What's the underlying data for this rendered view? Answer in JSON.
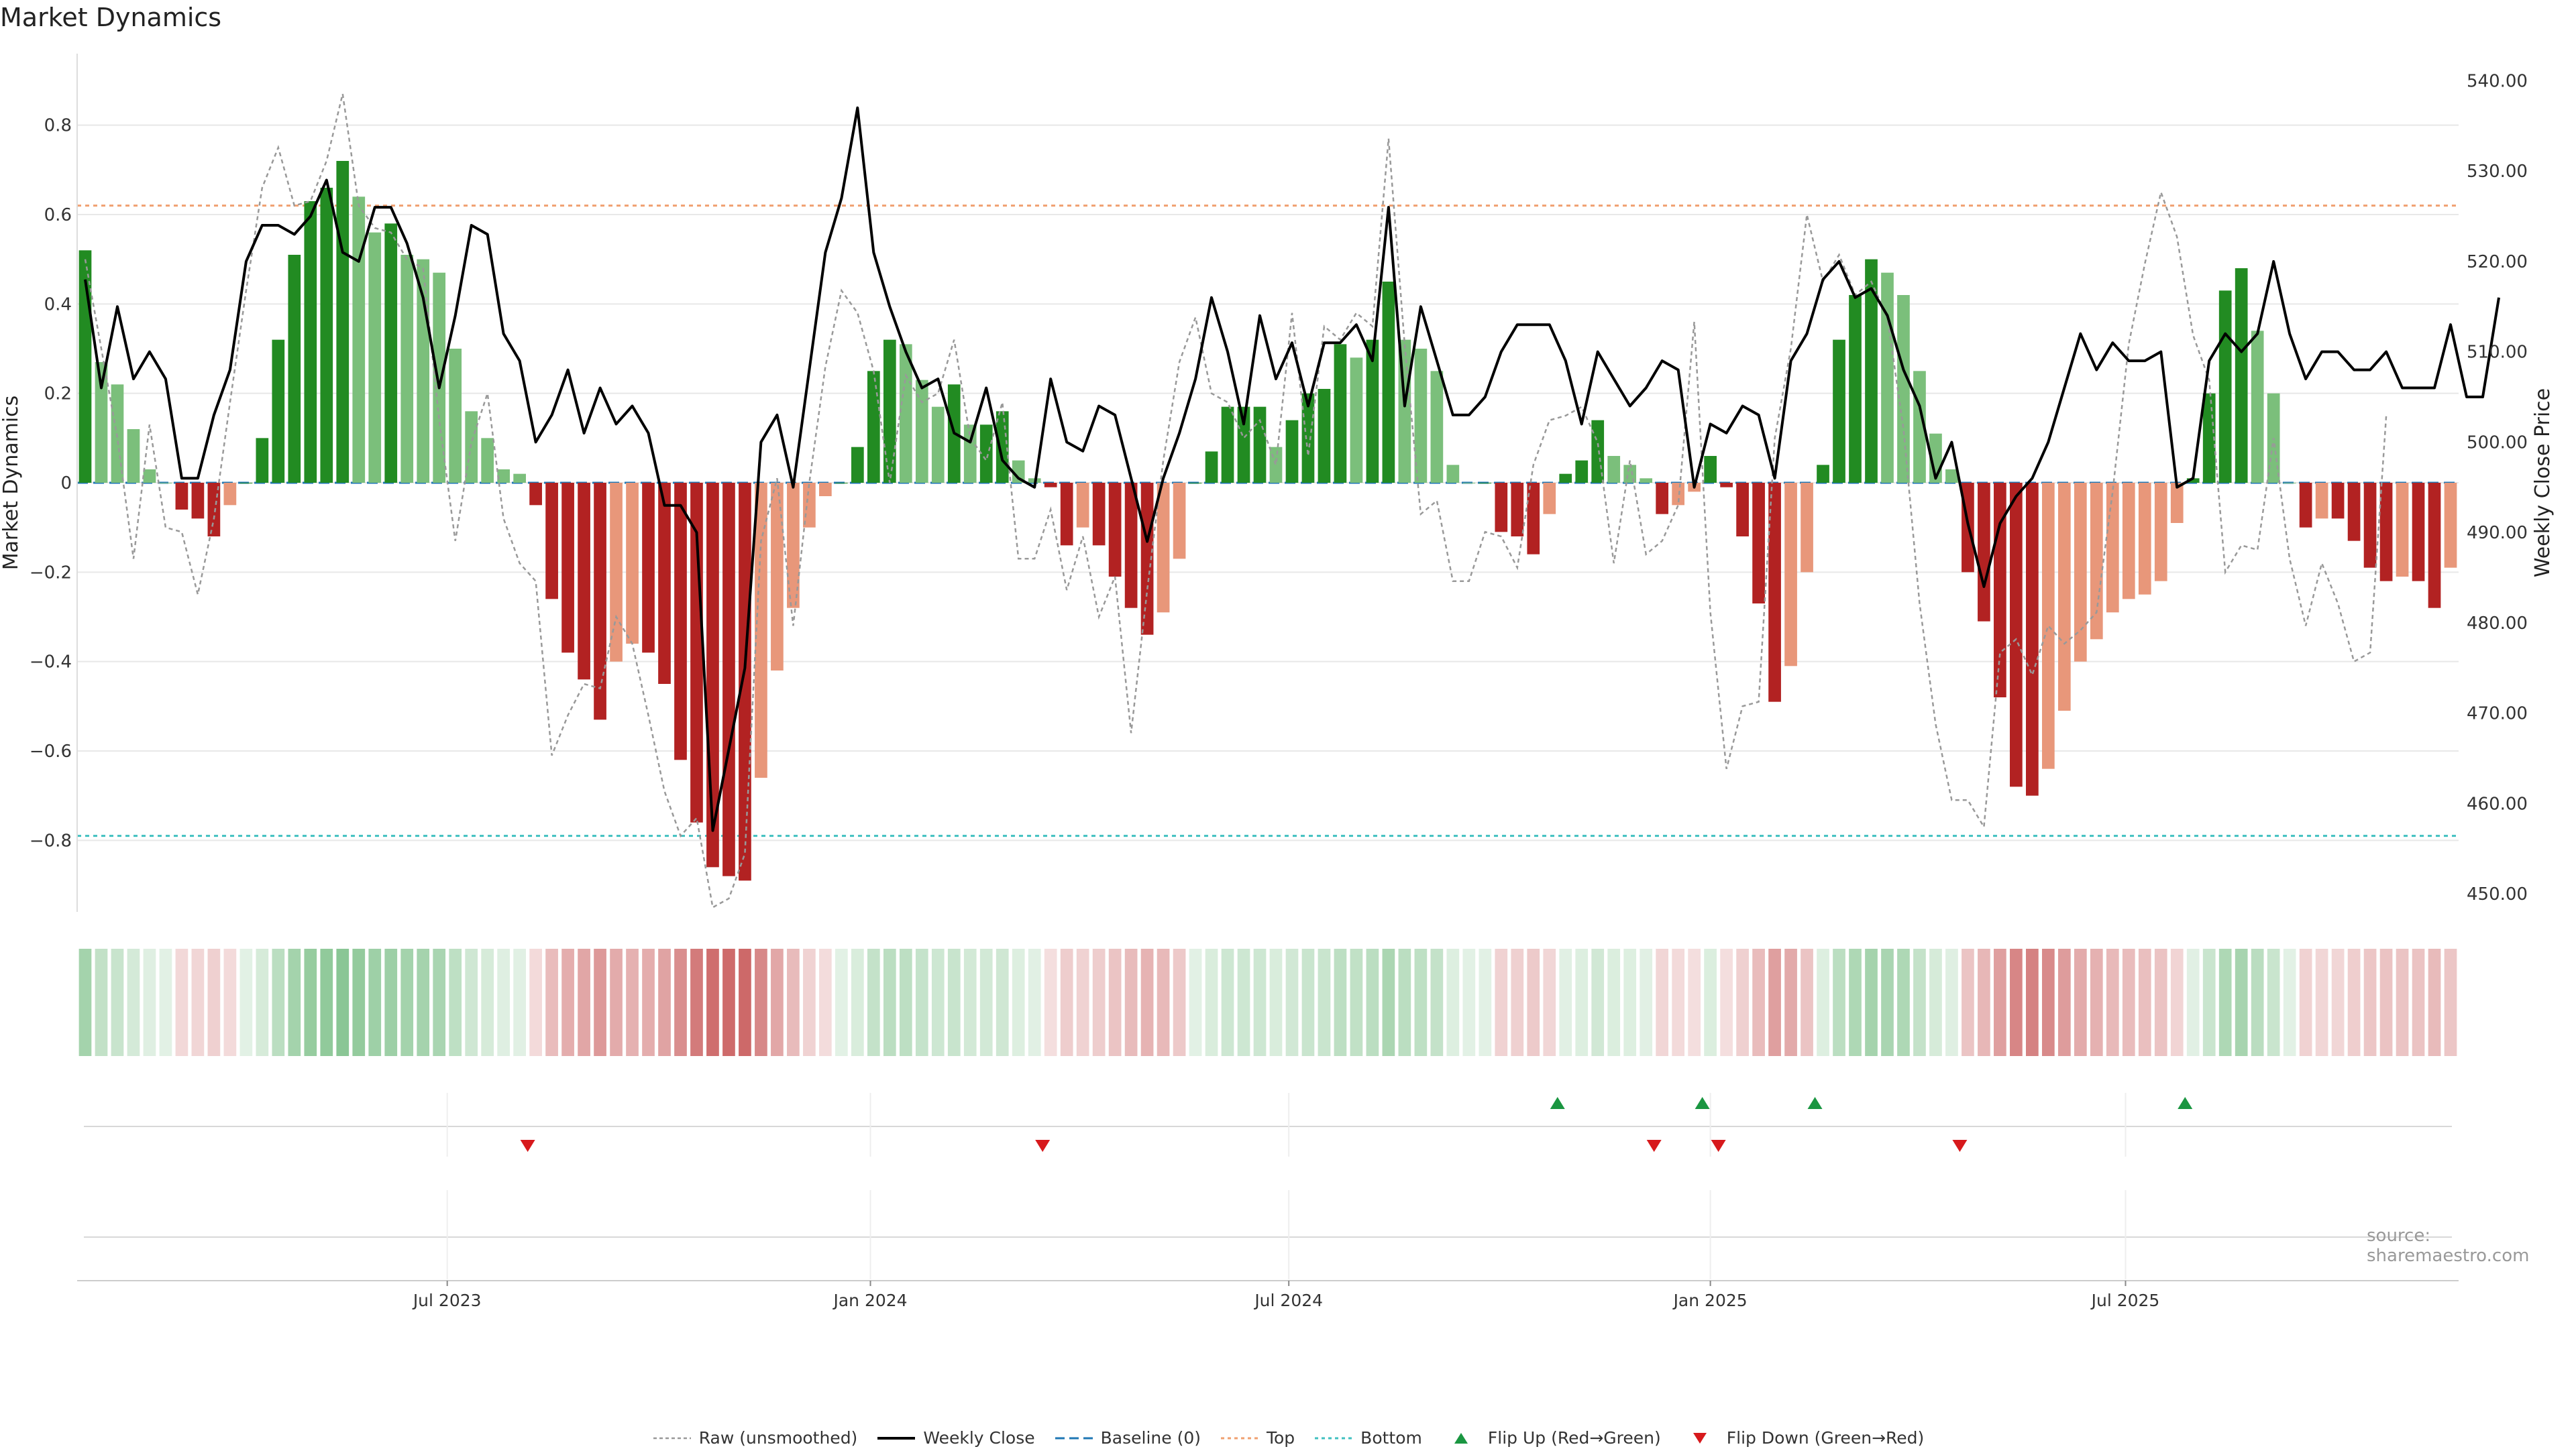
{
  "title": "Market Dynamics",
  "source_note": "source: sharemaestro.com",
  "legend": [
    {
      "label": "Raw (unsmoothed)",
      "key": "raw"
    },
    {
      "label": "Weekly Close",
      "key": "close"
    },
    {
      "label": "Baseline (0)",
      "key": "baseline"
    },
    {
      "label": "Top",
      "key": "top"
    },
    {
      "label": "Bottom",
      "key": "bottom"
    },
    {
      "label": "Flip Up (Red→Green)",
      "key": "flip_up"
    },
    {
      "label": "Flip Down (Green→Red)",
      "key": "flip_down"
    }
  ],
  "colors": {
    "green_strong": "#228b22",
    "green_light": "#7bbf7b",
    "red_strong": "#b22222",
    "red_light": "#e8977a",
    "close_line": "#000000",
    "raw_line": "#999999",
    "baseline": "#1f77b4",
    "top": "#f0a070",
    "bottom": "#40c0c0",
    "flip_up": "#1a9641",
    "flip_down": "#d7191c"
  },
  "chart_data": {
    "type": "bar",
    "title": "Market Dynamics",
    "ylabel": "Market Dynamics",
    "y2label": "Weekly Close Price",
    "ylim": [
      -0.96,
      0.96
    ],
    "y2lim": [
      448,
      543
    ],
    "yticks": [
      -0.8,
      -0.6,
      -0.4,
      -0.2,
      0,
      0.2,
      0.4,
      0.6,
      0.8
    ],
    "ytick_labels": [
      "−0.8",
      "−0.6",
      "−0.4",
      "−0.2",
      "0",
      "0.2",
      "0.4",
      "0.6",
      "0.8"
    ],
    "y2ticks": [
      450,
      460,
      470,
      480,
      490,
      500,
      510,
      520,
      530,
      540
    ],
    "y2tick_labels": [
      "450.00",
      "460.00",
      "470.00",
      "480.00",
      "490.00",
      "500.00",
      "510.00",
      "520.00",
      "530.00",
      "540.00"
    ],
    "top_threshold": 0.62,
    "bottom_threshold": -0.79,
    "baseline": 0,
    "x_ticks": [
      {
        "label": "Jul 2023",
        "week": 22.5
      },
      {
        "label": "Jan 2024",
        "week": 48.8
      },
      {
        "label": "Jul 2024",
        "week": 74.8
      },
      {
        "label": "Jan 2025",
        "week": 101.0
      },
      {
        "label": "Jul 2025",
        "week": 126.8
      }
    ],
    "smoothed": [
      0.52,
      0.27,
      0.22,
      0.12,
      0.03,
      0,
      -0.06,
      -0.08,
      -0.12,
      -0.05,
      0,
      0.1,
      0.32,
      0.51,
      0.63,
      0.66,
      0.72,
      0.64,
      0.56,
      0.58,
      0.51,
      0.5,
      0.47,
      0.3,
      0.16,
      0.1,
      0.03,
      0.02,
      -0.05,
      -0.26,
      -0.38,
      -0.44,
      -0.53,
      -0.4,
      -0.36,
      -0.38,
      -0.45,
      -0.62,
      -0.76,
      -0.86,
      -0.88,
      -0.89,
      -0.66,
      -0.42,
      -0.28,
      -0.1,
      -0.03,
      0,
      0.08,
      0.25,
      0.32,
      0.31,
      0.23,
      0.17,
      0.22,
      0.13,
      0.13,
      0.16,
      0.05,
      0.01,
      -0.01,
      -0.14,
      -0.1,
      -0.14,
      -0.21,
      -0.28,
      -0.34,
      -0.29,
      -0.17,
      0,
      0.07,
      0.17,
      0.17,
      0.17,
      0.08,
      0.14,
      0.2,
      0.21,
      0.31,
      0.28,
      0.32,
      0.45,
      0.32,
      0.3,
      0.25,
      0.04,
      0,
      0,
      -0.11,
      -0.12,
      -0.16,
      -0.07,
      0.02,
      0.05,
      0.14,
      0.06,
      0.04,
      0.01,
      -0.07,
      -0.05,
      -0.02,
      0.06,
      -0.01,
      -0.12,
      -0.27,
      -0.49,
      -0.41,
      -0.2,
      0.04,
      0.32,
      0.42,
      0.5,
      0.47,
      0.42,
      0.25,
      0.11,
      0.03,
      -0.2,
      -0.31,
      -0.48,
      -0.68,
      -0.7,
      -0.64,
      -0.51,
      -0.4,
      -0.35,
      -0.29,
      -0.26,
      -0.25,
      -0.22,
      -0.09,
      0.01,
      0.2,
      0.43,
      0.48,
      0.34,
      0.2,
      0,
      -0.1,
      -0.08,
      -0.08,
      -0.13,
      -0.19,
      -0.22,
      -0.21,
      -0.22,
      -0.28,
      -0.19
    ],
    "raw": [
      0.5,
      0.3,
      0.1,
      -0.17,
      0.13,
      -0.1,
      -0.11,
      -0.25,
      -0.08,
      0.18,
      0.43,
      0.66,
      0.75,
      0.62,
      0.63,
      0.72,
      0.87,
      0.62,
      0.57,
      0.56,
      0.5,
      0.48,
      0.14,
      -0.13,
      0.09,
      0.2,
      -0.08,
      -0.18,
      -0.22,
      -0.61,
      -0.52,
      -0.45,
      -0.46,
      -0.3,
      -0.36,
      -0.52,
      -0.69,
      -0.79,
      -0.75,
      -0.95,
      -0.93,
      -0.83,
      -0.13,
      0.01,
      -0.32,
      0.0,
      0.26,
      0.43,
      0.38,
      0.25,
      0.0,
      0.24,
      0.18,
      0.2,
      0.32,
      0.1,
      0.05,
      0.18,
      -0.17,
      -0.17,
      -0.06,
      -0.24,
      -0.12,
      -0.3,
      -0.21,
      -0.56,
      -0.24,
      0.05,
      0.27,
      0.37,
      0.2,
      0.18,
      0.1,
      0.14,
      0.04,
      0.38,
      0.06,
      0.35,
      0.32,
      0.38,
      0.35,
      0.77,
      0.31,
      -0.07,
      -0.04,
      -0.22,
      -0.22,
      -0.11,
      -0.12,
      -0.19,
      0.04,
      0.14,
      0.15,
      0.17,
      0.09,
      -0.18,
      0.05,
      -0.16,
      -0.13,
      -0.05,
      0.36,
      -0.29,
      -0.64,
      -0.5,
      -0.49,
      0.1,
      0.3,
      0.6,
      0.45,
      0.51,
      0.42,
      0.45,
      0.37,
      0.12,
      -0.27,
      -0.54,
      -0.71,
      -0.71,
      -0.77,
      -0.38,
      -0.35,
      -0.43,
      -0.32,
      -0.36,
      -0.33,
      -0.29,
      -0.02,
      0.31,
      0.49,
      0.65,
      0.55,
      0.33,
      0.23,
      -0.2,
      -0.14,
      -0.15,
      0.1,
      -0.17,
      -0.32,
      -0.18,
      -0.27,
      -0.4,
      -0.38,
      0.15
    ],
    "close": [
      518,
      506,
      515,
      507,
      510,
      507,
      496,
      496,
      503,
      508,
      520,
      524,
      524,
      523,
      525,
      529,
      521,
      520,
      526,
      526,
      522,
      516,
      506,
      514,
      524,
      523,
      512,
      509,
      500,
      503,
      508,
      501,
      506,
      502,
      504,
      501,
      493,
      493,
      490,
      457,
      466,
      475,
      500,
      503,
      495,
      508,
      521,
      527,
      537,
      521,
      515,
      510,
      506,
      507,
      501,
      500,
      506,
      498,
      496,
      495,
      507,
      500,
      499,
      504,
      503,
      496,
      489,
      496,
      501,
      507,
      516,
      510,
      502,
      514,
      507,
      511,
      504,
      511,
      511,
      513,
      509,
      526,
      504,
      515,
      509,
      503,
      503,
      505,
      510,
      513,
      513,
      513,
      509,
      502,
      510,
      507,
      504,
      506,
      509,
      508,
      495,
      502,
      501,
      504,
      503,
      496,
      509,
      512,
      518,
      520,
      516,
      517,
      514,
      508,
      504,
      496,
      500,
      491,
      484,
      491,
      494,
      496,
      500,
      506,
      512,
      508,
      511,
      509,
      509,
      510,
      495,
      496,
      509,
      512,
      510,
      512,
      520,
      512,
      507,
      510,
      510,
      508,
      508,
      510,
      506,
      506,
      506,
      513,
      505,
      505,
      516
    ]
  }
}
